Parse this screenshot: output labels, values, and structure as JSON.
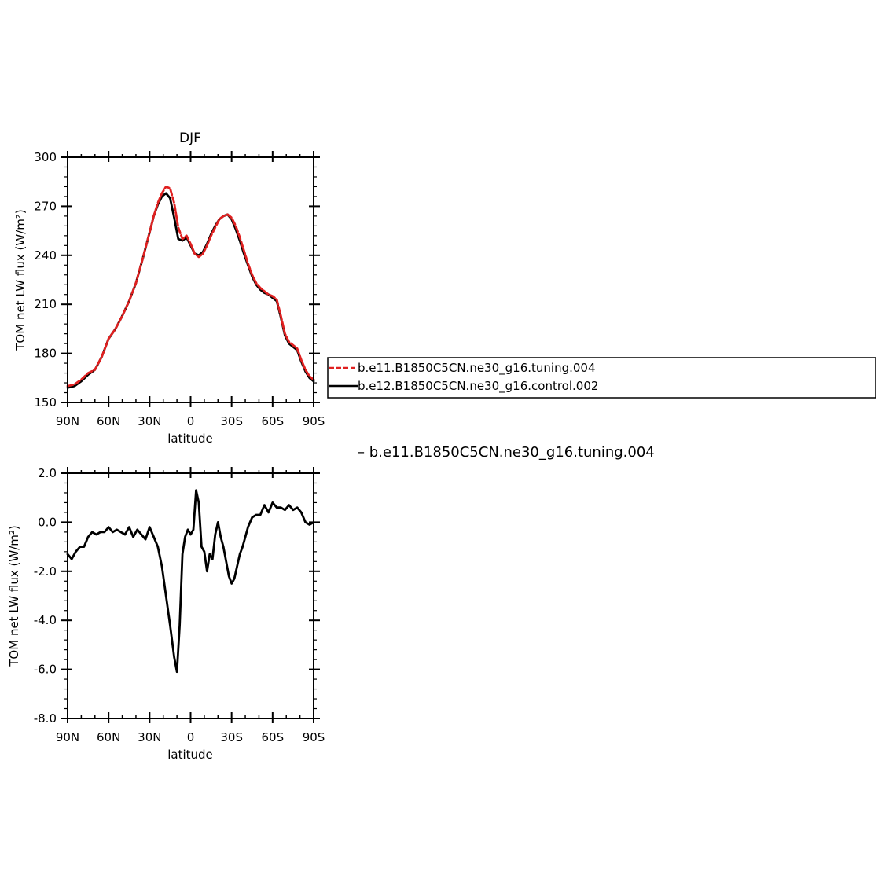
{
  "chart_data": [
    {
      "type": "line",
      "title": "DJF",
      "xlabel": "latitude",
      "ylabel": "TOM net LW flux (W/m²)",
      "xlim": [
        90,
        -90
      ],
      "ylim": [
        150,
        300
      ],
      "x_ticks": [
        "90N",
        "60N",
        "30N",
        "0",
        "30S",
        "60S",
        "90S"
      ],
      "y_ticks": [
        "150",
        "180",
        "210",
        "240",
        "270",
        "300"
      ],
      "legend_placement": "right",
      "series": [
        {
          "name": "b.e11.B1850C5CN.ne30_g16.tuning.004",
          "color": "#e02020",
          "style": "dashed",
          "x": [
            90,
            85,
            80,
            75,
            70,
            65,
            60,
            55,
            50,
            45,
            40,
            35,
            30,
            27,
            24,
            21,
            18,
            15,
            12,
            9,
            6,
            3,
            0,
            -3,
            -6,
            -9,
            -12,
            -15,
            -18,
            -21,
            -24,
            -27,
            -30,
            -33,
            -36,
            -39,
            -42,
            -45,
            -48,
            -51,
            -54,
            -57,
            -60,
            -63,
            -66,
            -69,
            -72,
            -75,
            -78,
            -81,
            -84,
            -87,
            -90
          ],
          "y": [
            160,
            161,
            164,
            168,
            170,
            178,
            189,
            195,
            203,
            212,
            223,
            238,
            254,
            264,
            272,
            278,
            282,
            281,
            272,
            257,
            250,
            252,
            247,
            241,
            239,
            241,
            246,
            252,
            257,
            262,
            264,
            265,
            263,
            258,
            251,
            243,
            235,
            228,
            223,
            220,
            218,
            216,
            215,
            213,
            203,
            192,
            187,
            185,
            183,
            176,
            170,
            166,
            164
          ]
        },
        {
          "name": "b.e12.B1850C5CN.ne30_g16.control.002",
          "color": "#000000",
          "style": "solid",
          "x": [
            90,
            85,
            80,
            75,
            70,
            65,
            60,
            55,
            50,
            45,
            40,
            35,
            30,
            27,
            24,
            21,
            18,
            15,
            12,
            9,
            6,
            3,
            0,
            -3,
            -6,
            -9,
            -12,
            -15,
            -18,
            -21,
            -24,
            -27,
            -30,
            -33,
            -36,
            -39,
            -42,
            -45,
            -48,
            -51,
            -54,
            -57,
            -60,
            -63,
            -66,
            -69,
            -72,
            -75,
            -78,
            -81,
            -84,
            -87,
            -90
          ],
          "y": [
            159,
            160,
            163,
            167,
            170,
            178,
            189,
            195,
            203,
            212,
            223,
            238,
            254,
            264,
            271,
            276,
            278,
            275,
            263,
            250,
            249,
            251,
            246,
            241,
            240,
            242,
            247,
            253,
            258,
            262,
            264,
            265,
            262,
            256,
            249,
            241,
            234,
            227,
            222,
            219,
            217,
            216,
            214,
            212,
            202,
            191,
            186,
            184,
            182,
            175,
            169,
            165,
            163
          ]
        }
      ]
    },
    {
      "type": "line",
      "title": "",
      "subtitle": "– b.e11.B1850C5CN.ne30_g16.tuning.004",
      "xlabel": "latitude",
      "ylabel": "TOM net LW flux (W/m²)",
      "xlim": [
        90,
        -90
      ],
      "ylim": [
        -8,
        2
      ],
      "x_ticks": [
        "90N",
        "60N",
        "30N",
        "0",
        "30S",
        "60S",
        "90S"
      ],
      "y_ticks": [
        "2.0",
        "0.0",
        "-2.0",
        "-4.0",
        "-6.0",
        "-8.0"
      ],
      "series": [
        {
          "color": "#000000",
          "style": "solid",
          "x": [
            90,
            87,
            84,
            81,
            78,
            75,
            72,
            69,
            66,
            63,
            60,
            57,
            54,
            51,
            48,
            45,
            42,
            39,
            36,
            33,
            30,
            27,
            24,
            21,
            18,
            15,
            12,
            10,
            8,
            6,
            4,
            2,
            0,
            -2,
            -4,
            -6,
            -8,
            -10,
            -12,
            -14,
            -16,
            -18,
            -20,
            -22,
            -24,
            -26,
            -28,
            -30,
            -32,
            -34,
            -36,
            -38,
            -40,
            -42,
            -45,
            -48,
            -51,
            -54,
            -57,
            -60,
            -63,
            -66,
            -69,
            -72,
            -75,
            -78,
            -81,
            -84,
            -87,
            -90
          ],
          "y": [
            -1.3,
            -1.5,
            -1.2,
            -1.0,
            -1.0,
            -0.6,
            -0.4,
            -0.5,
            -0.4,
            -0.4,
            -0.2,
            -0.4,
            -0.3,
            -0.4,
            -0.5,
            -0.2,
            -0.6,
            -0.3,
            -0.5,
            -0.7,
            -0.2,
            -0.6,
            -1.0,
            -1.8,
            -3.0,
            -4.2,
            -5.5,
            -6.1,
            -4.2,
            -1.3,
            -0.6,
            -0.3,
            -0.5,
            -0.3,
            1.3,
            0.8,
            -1.0,
            -1.2,
            -2.0,
            -1.3,
            -1.5,
            -0.5,
            0.0,
            -0.6,
            -1.0,
            -1.6,
            -2.2,
            -2.5,
            -2.3,
            -1.8,
            -1.3,
            -1.0,
            -0.6,
            -0.2,
            0.2,
            0.3,
            0.3,
            0.7,
            0.4,
            0.8,
            0.6,
            0.6,
            0.5,
            0.7,
            0.5,
            0.6,
            0.4,
            0.0,
            -0.1,
            0.0
          ]
        }
      ]
    }
  ]
}
